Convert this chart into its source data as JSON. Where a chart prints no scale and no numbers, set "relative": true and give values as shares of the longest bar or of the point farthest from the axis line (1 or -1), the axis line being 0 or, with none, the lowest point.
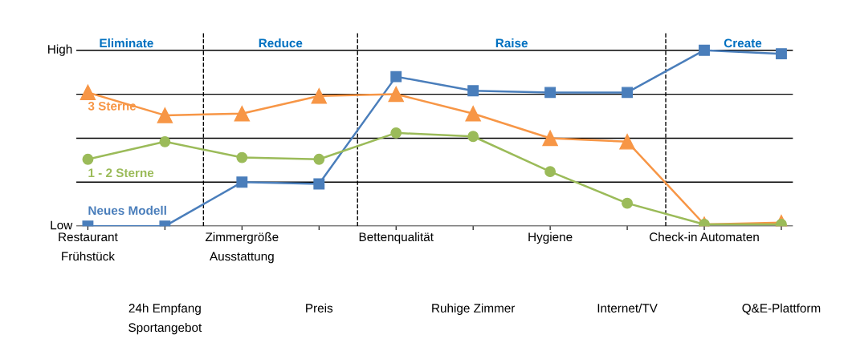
{
  "chart_data": {
    "type": "line",
    "relative": true,
    "categories": [
      "Restaurant\nFrühstück",
      "24h Empfang\nSportangebot",
      "Zimmergröße\nAusstattung",
      "Preis",
      "Bettenqualität",
      "Ruhige Zimmer",
      "Hygiene",
      "Internet/TV",
      "Check-in Automaten",
      "Q&E-Plattform"
    ],
    "series": [
      {
        "name": "Neues Modell",
        "color": "#4a7ebb",
        "marker": "square",
        "values": [
          0.0,
          0.0,
          0.25,
          0.24,
          0.85,
          0.77,
          0.76,
          0.76,
          1.0,
          0.98
        ]
      },
      {
        "name": "3 Sterne",
        "color": "#f79646",
        "marker": "triangle",
        "values": [
          0.76,
          0.63,
          0.64,
          0.74,
          0.75,
          0.64,
          0.5,
          0.48,
          0.01,
          0.02
        ]
      },
      {
        "name": "1 - 2 Sterne",
        "color": "#9bbb59",
        "marker": "circle",
        "values": [
          0.38,
          0.48,
          0.39,
          0.38,
          0.53,
          0.51,
          0.31,
          0.13,
          0.01,
          0.01
        ]
      }
    ],
    "annotations": [
      "Low",
      "High",
      "Eliminate",
      "Reduce",
      "Raise",
      "Create"
    ],
    "grid": "y",
    "legend": false
  }
}
